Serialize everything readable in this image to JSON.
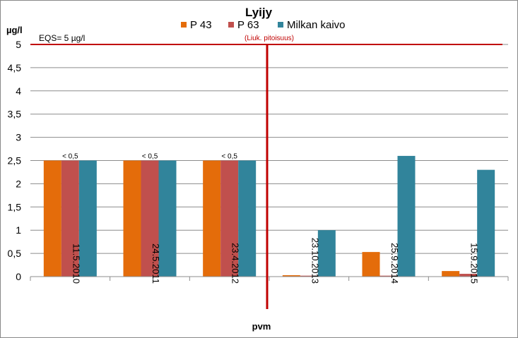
{
  "chart_data": {
    "type": "bar",
    "title": "Lyijy",
    "ylabel": "µg/l",
    "xlabel": "pvm",
    "ylim": [
      0,
      5
    ],
    "yticks": [
      "0",
      "0,5",
      "1",
      "1,5",
      "2",
      "2,5",
      "3",
      "3,5",
      "4",
      "4,5",
      "5"
    ],
    "grid": true,
    "legend_position": "top",
    "categories": [
      "11.5.2010",
      "24.5.2011",
      "23.4.2012",
      "23.10.2013",
      "25.9.2014",
      "15.9.2015"
    ],
    "series": [
      {
        "name": "P 43",
        "color": "#e46c0a",
        "values": [
          2.5,
          2.5,
          2.5,
          0.03,
          0.53,
          0.12
        ]
      },
      {
        "name": "P 63",
        "color": "#c0504d",
        "values": [
          2.5,
          2.5,
          2.5,
          0.02,
          0.02,
          0.06
        ]
      },
      {
        "name": "Milkan kaivo",
        "color": "#31849b",
        "values": [
          2.5,
          2.5,
          2.5,
          1.0,
          2.6,
          2.3
        ]
      }
    ],
    "annotations": {
      "below_detection": [
        "< 0,5",
        "< 0,5",
        "< 0,5"
      ],
      "eqs_label": "EQS= 5 µg/l",
      "eqs_value": 5,
      "eqs_color": "#c00000",
      "method_change_note": "(Liuk. pitoisuus)",
      "method_change_color": "#c00000"
    }
  }
}
